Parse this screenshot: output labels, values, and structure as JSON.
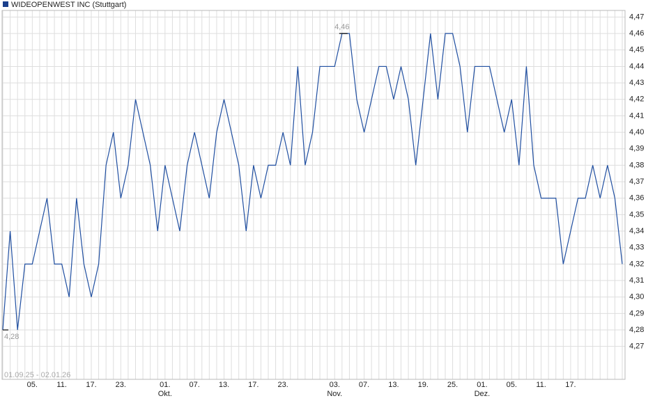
{
  "chart_data": {
    "type": "line",
    "series": [
      {
        "name": "WIDEOPENWEST INC (Stuttgart)",
        "color": "#1f4ea0",
        "values": [
          4.28,
          4.34,
          4.28,
          4.32,
          4.32,
          4.34,
          4.36,
          4.32,
          4.32,
          4.3,
          4.36,
          4.32,
          4.3,
          4.32,
          4.38,
          4.4,
          4.36,
          4.38,
          4.42,
          4.4,
          4.38,
          4.34,
          4.38,
          4.36,
          4.34,
          4.38,
          4.4,
          4.38,
          4.36,
          4.4,
          4.42,
          4.4,
          4.38,
          4.34,
          4.38,
          4.36,
          4.38,
          4.38,
          4.4,
          4.38,
          4.44,
          4.38,
          4.4,
          4.44,
          4.44,
          4.44,
          4.46,
          4.46,
          4.42,
          4.4,
          4.42,
          4.44,
          4.44,
          4.42,
          4.44,
          4.42,
          4.38,
          4.42,
          4.46,
          4.42,
          4.46,
          4.46,
          4.44,
          4.4,
          4.44,
          4.44,
          4.44,
          4.42,
          4.4,
          4.42,
          4.38,
          4.44,
          4.38,
          4.36,
          4.36,
          4.36,
          4.32,
          4.34,
          4.36,
          4.36,
          4.38,
          4.36,
          4.38,
          4.36,
          4.32
        ]
      }
    ],
    "categories": [
      null,
      null,
      null,
      null,
      "05.",
      null,
      null,
      null,
      "11.",
      null,
      null,
      null,
      "17.",
      null,
      null,
      null,
      "23.",
      null,
      null,
      null,
      null,
      null,
      "01.\nOkt.",
      null,
      null,
      null,
      "07.",
      null,
      null,
      null,
      "13.",
      null,
      null,
      null,
      "17.",
      null,
      null,
      null,
      "23.",
      null,
      null,
      null,
      null,
      null,
      null,
      "03.\nNov.",
      null,
      null,
      null,
      "07.",
      null,
      null,
      null,
      "13.",
      null,
      null,
      null,
      "19.",
      null,
      null,
      null,
      "25.",
      null,
      null,
      null,
      "01.\nDez.",
      null,
      null,
      null,
      "05.",
      null,
      null,
      null,
      "11.",
      null,
      null,
      null,
      "17.",
      null,
      null,
      null,
      null,
      null,
      null,
      null
    ],
    "ylim": [
      4.25,
      4.474
    ],
    "yticks": [
      {
        "value": 4.27,
        "label": "4,27"
      },
      {
        "value": 4.28,
        "label": "4,28"
      },
      {
        "value": 4.29,
        "label": "4,29"
      },
      {
        "value": 4.3,
        "label": "4,30"
      },
      {
        "value": 4.31,
        "label": "4,31"
      },
      {
        "value": 4.32,
        "label": "4,32"
      },
      {
        "value": 4.33,
        "label": "4,33"
      },
      {
        "value": 4.34,
        "label": "4,34"
      },
      {
        "value": 4.35,
        "label": "4,35"
      },
      {
        "value": 4.36,
        "label": "4,36"
      },
      {
        "value": 4.37,
        "label": "4,37"
      },
      {
        "value": 4.38,
        "label": "4,38"
      },
      {
        "value": 4.39,
        "label": "4,39"
      },
      {
        "value": 4.4,
        "label": "4,40"
      },
      {
        "value": 4.41,
        "label": "4,41"
      },
      {
        "value": 4.42,
        "label": "4,42"
      },
      {
        "value": 4.43,
        "label": "4,43"
      },
      {
        "value": 4.44,
        "label": "4,44"
      },
      {
        "value": 4.45,
        "label": "4,45"
      },
      {
        "value": 4.46,
        "label": "4,46"
      },
      {
        "value": 4.47,
        "label": "4,47"
      }
    ],
    "annotations": [
      {
        "label": "4,46",
        "value": 4.46
      },
      {
        "label": "4,28",
        "value": 4.28
      }
    ],
    "date_range": "01.09.25 - 02.01.26",
    "grid": true
  }
}
